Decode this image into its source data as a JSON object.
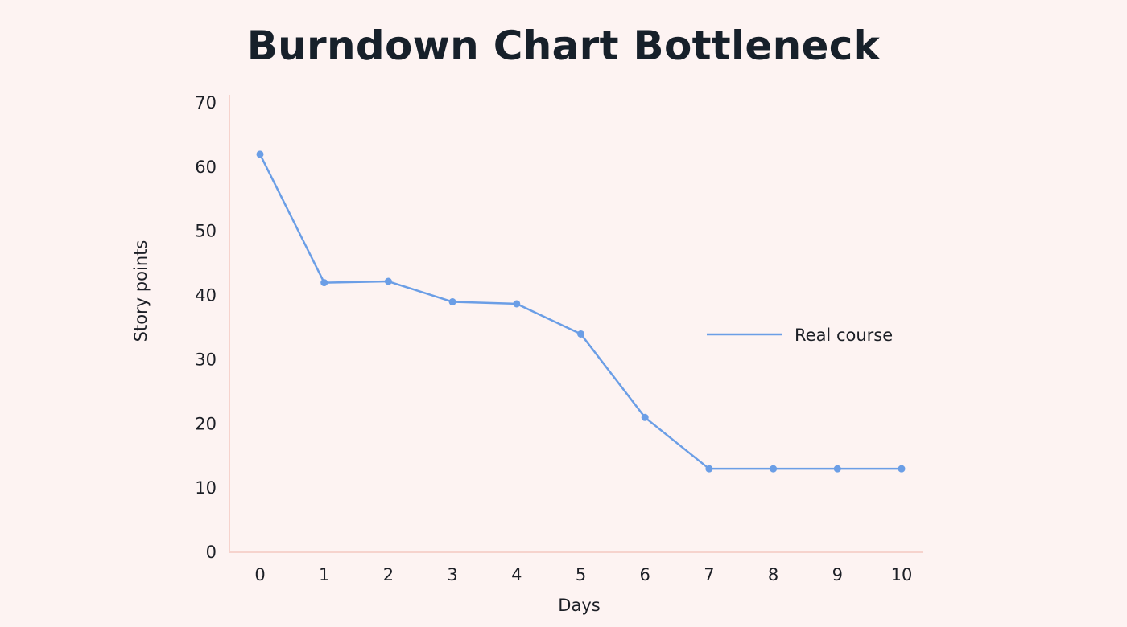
{
  "colors": {
    "background": "#fdf3f2",
    "axis": "#f6d3cd",
    "series": "#6b9ee6",
    "text": "#1c1f26"
  },
  "chart_data": {
    "type": "line",
    "title": "Burndown Chart Bottleneck",
    "xlabel": "Days",
    "ylabel": "Story points",
    "x": [
      0,
      1,
      2,
      3,
      4,
      5,
      6,
      7,
      8,
      9,
      10
    ],
    "xlim": [
      0,
      10
    ],
    "ylim": [
      0,
      70
    ],
    "yticks": [
      0,
      10,
      20,
      30,
      40,
      50,
      60,
      70
    ],
    "grid": false,
    "legend_position": "right",
    "series": [
      {
        "name": "Real course",
        "values": [
          62,
          42,
          42.2,
          39,
          38.7,
          34,
          21,
          13,
          13,
          13,
          13
        ]
      }
    ]
  }
}
